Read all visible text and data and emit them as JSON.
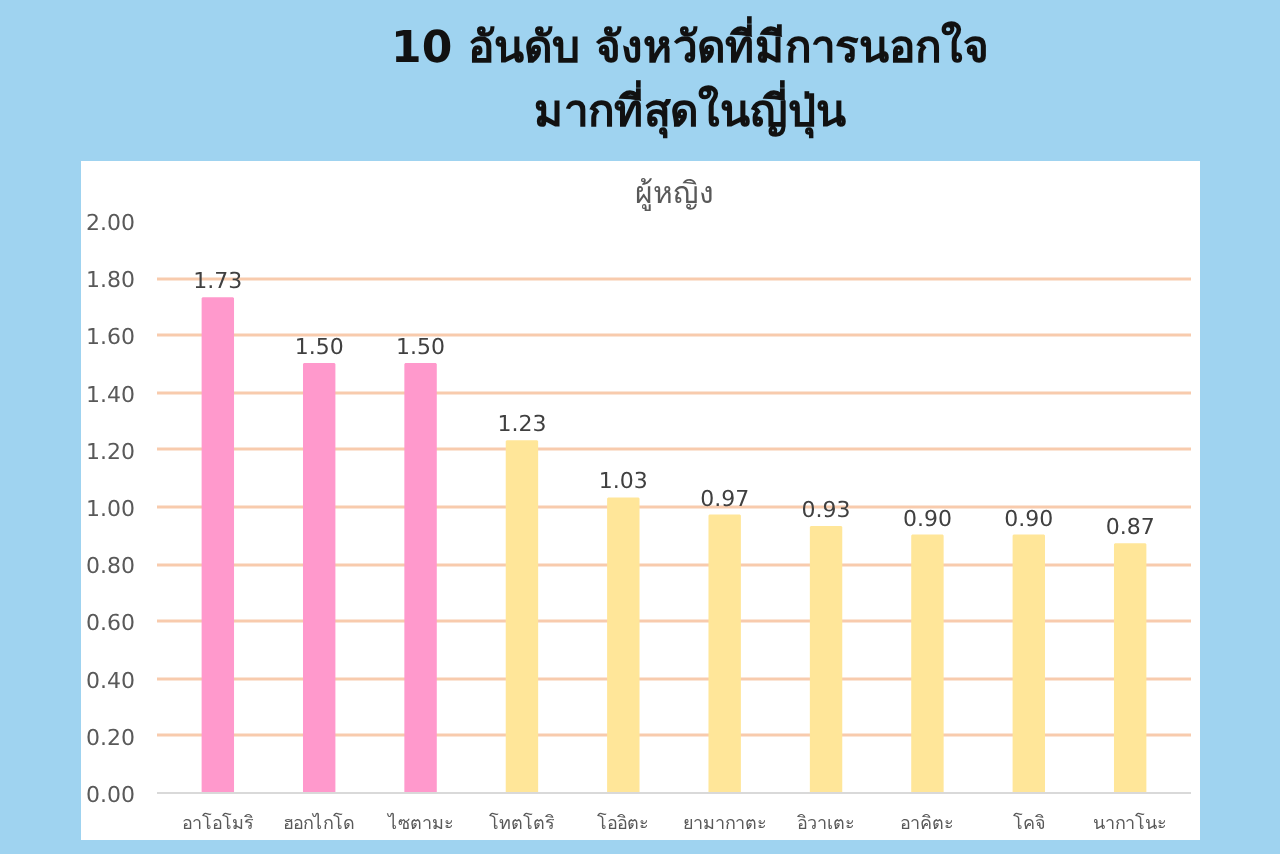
{
  "chart_data": {
    "type": "bar",
    "title": "10 อันดับ จังหวัดที่มีการนอกใจ\nมากที่สุดในญี่ปุ่น",
    "subtitle": "ผู้หญิง",
    "categories": [
      "อาโอโมริ",
      "ฮอกไกโด",
      "ไซตามะ",
      "โทตโตริ",
      "โออิตะ",
      "ยามากาตะ",
      "อิวาเตะ",
      "อาคิตะ",
      "โคจิ",
      "นากาโนะ"
    ],
    "values": [
      1.73,
      1.5,
      1.5,
      1.23,
      1.03,
      0.97,
      0.93,
      0.9,
      0.9,
      0.87
    ],
    "colors": [
      "#ff99cc",
      "#ff99cc",
      "#ff99cc",
      "#ffe699",
      "#ffe699",
      "#ffe699",
      "#ffe699",
      "#ffe699",
      "#ffe699",
      "#ffe699"
    ],
    "ylim": [
      0,
      2
    ],
    "yticks": [
      {
        "value": 0,
        "label": "0.00"
      },
      {
        "value": 0.2,
        "label": "0.20"
      },
      {
        "value": 0.4,
        "label": "0.40"
      },
      {
        "value": 0.6,
        "label": "0.60"
      },
      {
        "value": 0.8,
        "label": "0.80"
      },
      {
        "value": 1.0,
        "label": "1.00"
      },
      {
        "value": 1.2,
        "label": "1.20"
      },
      {
        "value": 1.4,
        "label": "1.40"
      },
      {
        "value": 1.6,
        "label": "1.60"
      },
      {
        "value": 1.8,
        "label": "1.80"
      },
      {
        "value": 2.0,
        "label": "2.00"
      }
    ],
    "value_labels": [
      "1.73",
      "1.50",
      "1.50",
      "1.23",
      "1.03",
      "0.97",
      "0.93",
      "0.90",
      "0.90",
      "0.87"
    ],
    "grid": "y"
  }
}
